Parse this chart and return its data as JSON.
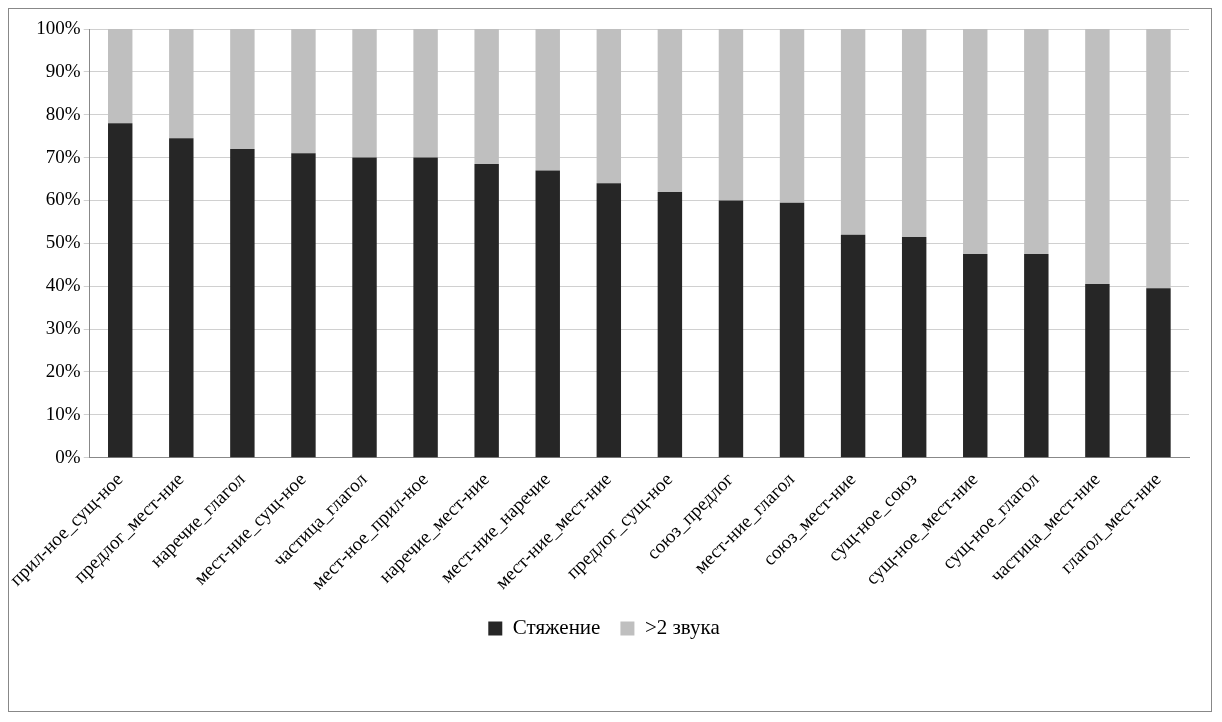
{
  "chart_data": {
    "type": "bar",
    "stacked": true,
    "categories": [
      "прил-ное_сущ-ное",
      "предлог_мест-ние",
      "наречие_глагол",
      "мест-ние_сущ-ное",
      "частица_глагол",
      "мест-ное_прил-ное",
      "наречие_мест-ние",
      "мест-ние_наречие",
      "мест-ние_мест-ние",
      "предлог_сущ-ное",
      "союз_предлог",
      "мест-ние_глагол",
      "союз_мест-ние",
      "сущ-ное_союз",
      "сущ-ное_мест-ние",
      "сущ-ное_глагол",
      "частица_мест-ние",
      "глагол_мест-ние"
    ],
    "series": [
      {
        "name": "Стяжение",
        "color": "#262626",
        "values": [
          78,
          74.5,
          72,
          71,
          70,
          70,
          68.5,
          67,
          64,
          62,
          60,
          59.5,
          52,
          51.5,
          47.5,
          47.5,
          40.5,
          39.5
        ]
      },
      {
        "name": ">2 звука",
        "color": "#bfbfbf",
        "values": [
          22,
          25.5,
          28,
          29,
          30,
          30,
          31.5,
          33,
          36,
          38,
          40,
          40.5,
          48,
          48.5,
          52.5,
          52.5,
          59.5,
          60.5
        ]
      }
    ],
    "ylim": [
      0,
      100
    ],
    "yticks": [
      {
        "value": 0,
        "label": "0%"
      },
      {
        "value": 10,
        "label": "10%"
      },
      {
        "value": 20,
        "label": "20%"
      },
      {
        "value": 30,
        "label": "30%"
      },
      {
        "value": 40,
        "label": "40%"
      },
      {
        "value": 50,
        "label": "50%"
      },
      {
        "value": 60,
        "label": "60%"
      },
      {
        "value": 70,
        "label": "70%"
      },
      {
        "value": 80,
        "label": "80%"
      },
      {
        "value": 90,
        "label": "90%"
      },
      {
        "value": 100,
        "label": "100%"
      }
    ],
    "grid": "y",
    "legend": "bottom"
  }
}
